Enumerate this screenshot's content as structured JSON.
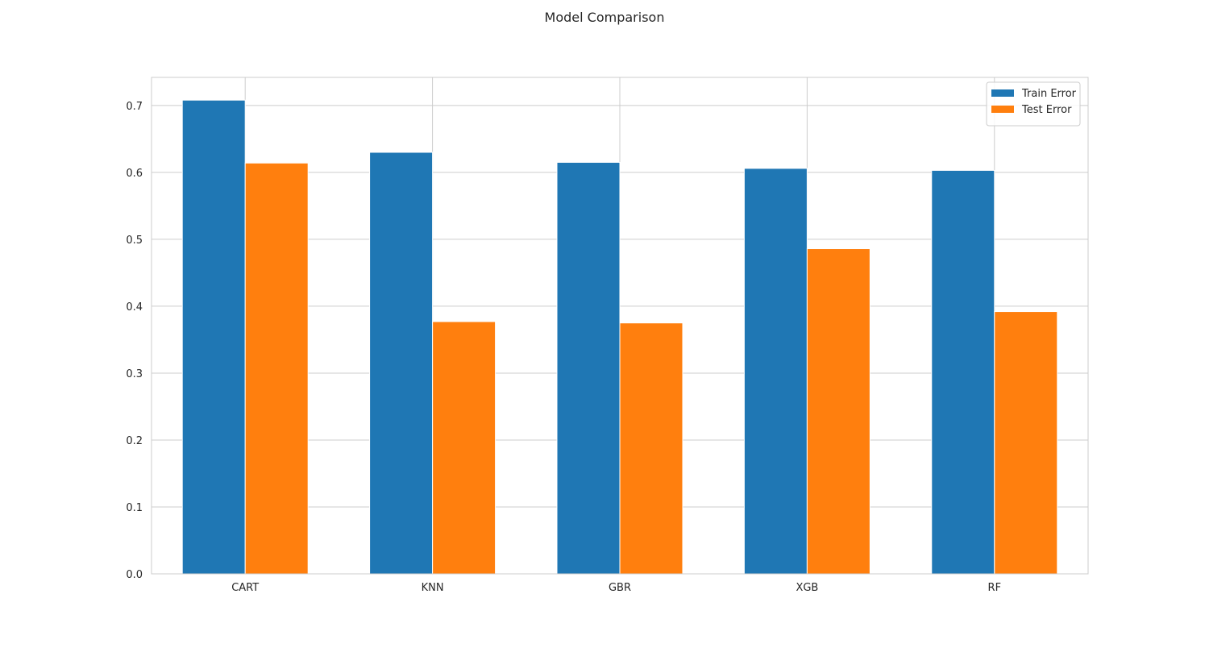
{
  "chart_data": {
    "type": "bar",
    "title": "Model Comparison",
    "xlabel": "",
    "ylabel": "",
    "categories": [
      "CART",
      "KNN",
      "GBR",
      "XGB",
      "RF"
    ],
    "series": [
      {
        "name": "Train Error",
        "color": "#1f77b4",
        "values": [
          0.708,
          0.63,
          0.615,
          0.606,
          0.603
        ]
      },
      {
        "name": "Test Error",
        "color": "#ff7f0e",
        "values": [
          0.614,
          0.377,
          0.375,
          0.486,
          0.392
        ]
      }
    ],
    "ylim": [
      0,
      0.742
    ],
    "yticks": [
      0.0,
      0.1,
      0.2,
      0.3,
      0.4,
      0.5,
      0.6,
      0.7
    ],
    "ytick_labels": [
      "0.0",
      "0.1",
      "0.2",
      "0.3",
      "0.4",
      "0.5",
      "0.6",
      "0.7"
    ],
    "grid": true,
    "legend_position": "top-right"
  }
}
